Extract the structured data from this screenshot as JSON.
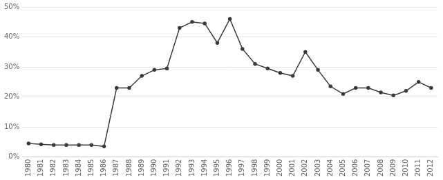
{
  "chart_data": {
    "type": "line",
    "x": [
      1980,
      1981,
      1982,
      1983,
      1984,
      1985,
      1986,
      1987,
      1988,
      1989,
      1990,
      1991,
      1992,
      1993,
      1994,
      1995,
      1996,
      1997,
      1998,
      1999,
      2000,
      2001,
      2002,
      2003,
      2004,
      2005,
      2006,
      2007,
      2008,
      2009,
      2010,
      2011,
      2012
    ],
    "values": [
      4.5,
      4.2,
      4.0,
      4.0,
      4.0,
      4.0,
      3.5,
      23.0,
      23.0,
      27.0,
      29.0,
      29.5,
      43.0,
      45.0,
      44.5,
      38.0,
      46.0,
      36.0,
      31.0,
      29.5,
      28.0,
      27.0,
      35.0,
      29.0,
      23.5,
      21.0,
      23.0,
      23.0,
      21.5,
      20.5,
      22.0,
      25.0,
      23.0
    ],
    "color": "#3a3a3a",
    "marker": "circle",
    "xlim": [
      1979.5,
      2012.5
    ],
    "xticks": [
      1980,
      1981,
      1982,
      1983,
      1984,
      1985,
      1986,
      1987,
      1988,
      1989,
      1990,
      1991,
      1992,
      1993,
      1994,
      1995,
      1996,
      1997,
      1998,
      1999,
      2000,
      2001,
      2002,
      2003,
      2004,
      2005,
      2006,
      2007,
      2008,
      2009,
      2010,
      2011,
      2012
    ],
    "ylim": [
      0,
      50
    ],
    "yticks": [
      {
        "value": 0,
        "label": "0%"
      },
      {
        "value": 10,
        "label": "10%"
      },
      {
        "value": 20,
        "label": "20%"
      },
      {
        "value": 30,
        "label": "30%"
      },
      {
        "value": 40,
        "label": "40%"
      },
      {
        "value": 50,
        "label": "50%"
      }
    ],
    "grid": "y"
  }
}
